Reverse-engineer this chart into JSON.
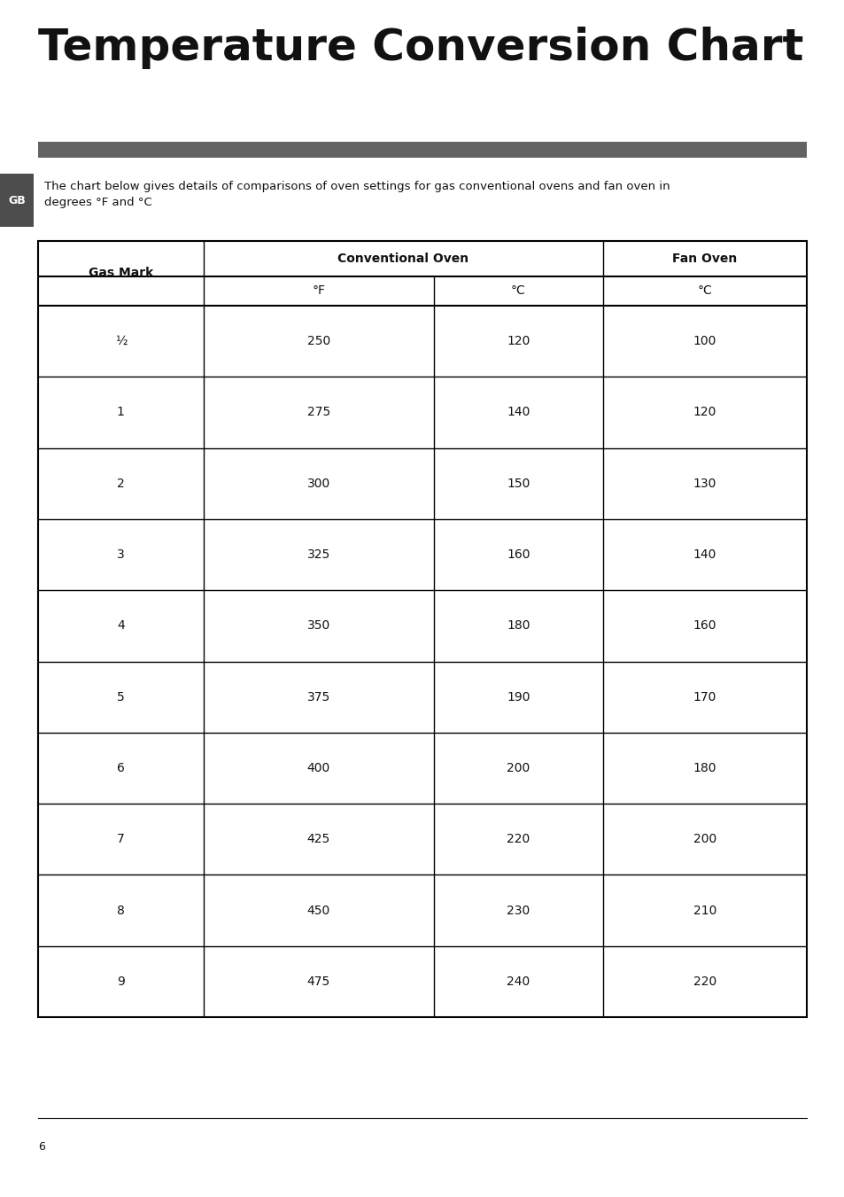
{
  "title": "Temperature Conversion Chart",
  "title_fontsize": 36,
  "title_fontweight": "bold",
  "bar_color": "#636363",
  "description_line1": "The chart below gives details of comparisons of oven settings for gas conventional ovens and fan oven in",
  "description_line2": "degrees °F and °C",
  "description_fontsize": 9.5,
  "gb_label": "GB",
  "gb_box_color": "#4d4d4d",
  "gb_text_color": "#ffffff",
  "col_header1": "Gas Mark",
  "col_header2": "Conventional Oven",
  "col_header3": "Fan Oven",
  "sub_header_F": "°F",
  "sub_header_C1": "°C",
  "sub_header_C2": "°C",
  "table_data": [
    [
      "½",
      "250",
      "120",
      "100"
    ],
    [
      "1",
      "275",
      "140",
      "120"
    ],
    [
      "2",
      "300",
      "150",
      "130"
    ],
    [
      "3",
      "325",
      "160",
      "140"
    ],
    [
      "4",
      "350",
      "180",
      "160"
    ],
    [
      "5",
      "375",
      "190",
      "170"
    ],
    [
      "6",
      "400",
      "200",
      "180"
    ],
    [
      "7",
      "425",
      "220",
      "200"
    ],
    [
      "8",
      "450",
      "230",
      "210"
    ],
    [
      "9",
      "475",
      "240",
      "220"
    ]
  ],
  "page_number": "6",
  "table_border_color": "#000000",
  "table_line_color": "#000000",
  "header_fontsize": 10,
  "cell_fontsize": 10,
  "background_color": "#ffffff"
}
